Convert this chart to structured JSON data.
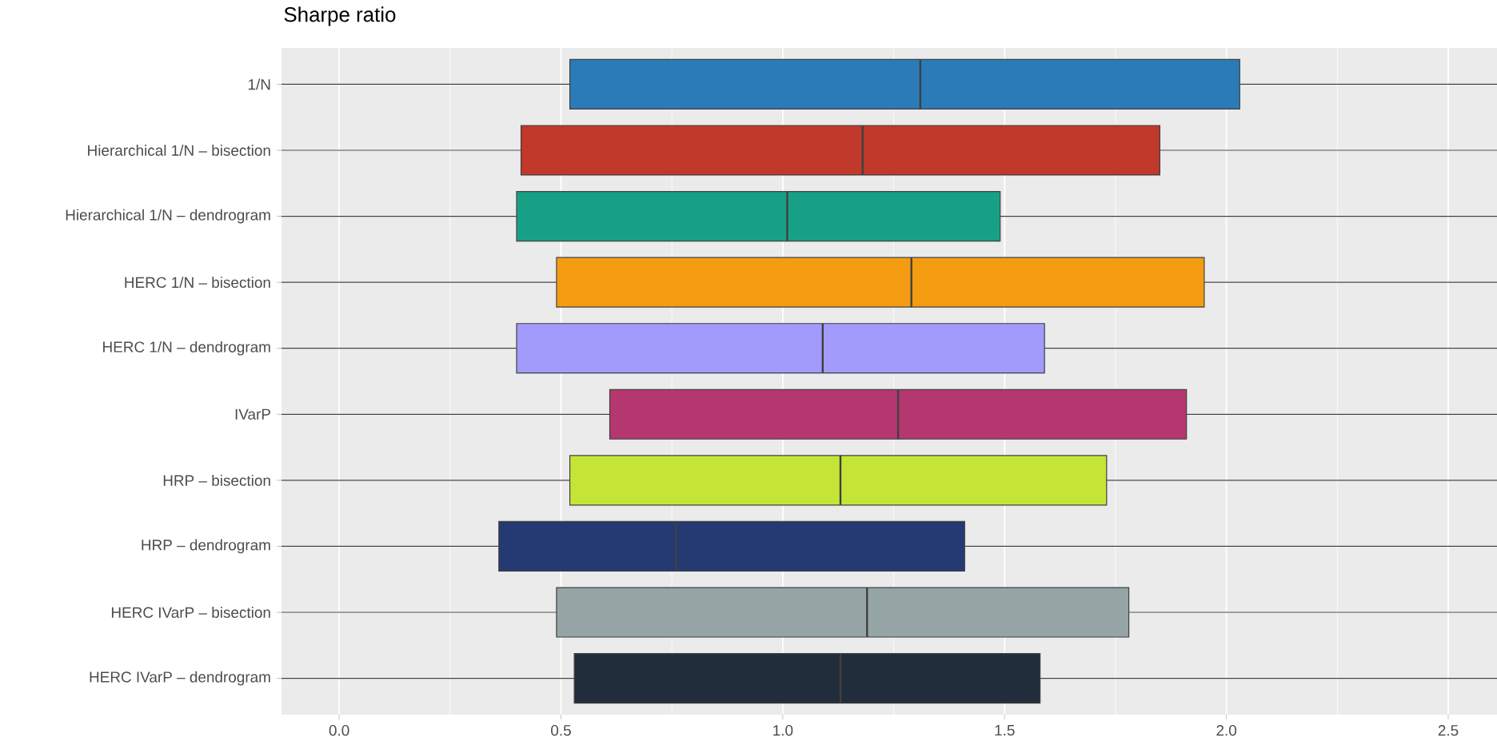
{
  "chart_data": {
    "type": "box",
    "title": "Sharpe ratio",
    "orientation": "horizontal",
    "grid": true,
    "categories": [
      "1/N",
      "Hierarchical 1/N – bisection",
      "Hierarchical 1/N – dendrogram",
      "HERC 1/N – bisection",
      "HERC 1/N – dendrogram",
      "IVarP",
      "HRP – bisection",
      "HRP – dendrogram",
      "HERC IVarP – bisection",
      "HERC IVarP – dendrogram"
    ],
    "xlim": [
      -0.13,
      2.61
    ],
    "xticks": [
      {
        "value": 0,
        "label": "0.0"
      },
      {
        "value": 0.5,
        "label": "0.5"
      },
      {
        "value": 1,
        "label": "1.0"
      },
      {
        "value": 1.5,
        "label": "1.5"
      },
      {
        "value": 2,
        "label": "2.0"
      },
      {
        "value": 2.5,
        "label": "2.5"
      }
    ],
    "colors": [
      "#2b7bb9",
      "#c0392b",
      "#17a085",
      "#f39c12",
      "#a29bfc",
      "#b5376f",
      "#c4e535",
      "#253a73",
      "#95a5a6",
      "#212d3b"
    ],
    "boxes": [
      {
        "low": -0.13,
        "q1": 0.52,
        "median": 1.31,
        "q3": 2.03,
        "high": 2.61
      },
      {
        "low": -0.13,
        "q1": 0.41,
        "median": 1.18,
        "q3": 1.85,
        "high": 2.61
      },
      {
        "low": -0.13,
        "q1": 0.4,
        "median": 1.01,
        "q3": 1.49,
        "high": 2.61
      },
      {
        "low": -0.13,
        "q1": 0.49,
        "median": 1.29,
        "q3": 1.95,
        "high": 2.61
      },
      {
        "low": -0.13,
        "q1": 0.4,
        "median": 1.09,
        "q3": 1.59,
        "high": 2.61
      },
      {
        "low": -0.13,
        "q1": 0.61,
        "median": 1.26,
        "q3": 1.91,
        "high": 2.61
      },
      {
        "low": -0.13,
        "q1": 0.52,
        "median": 1.13,
        "q3": 1.73,
        "high": 2.61
      },
      {
        "low": -0.13,
        "q1": 0.36,
        "median": 0.76,
        "q3": 1.41,
        "high": 2.61
      },
      {
        "low": -0.13,
        "q1": 0.49,
        "median": 1.19,
        "q3": 1.78,
        "high": 2.61
      },
      {
        "low": -0.13,
        "q1": 0.53,
        "median": 1.13,
        "q3": 1.58,
        "high": 2.61
      }
    ]
  }
}
